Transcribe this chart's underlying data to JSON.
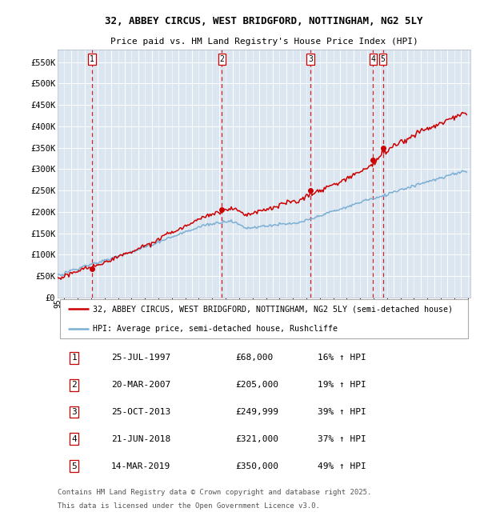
{
  "title1": "32, ABBEY CIRCUS, WEST BRIDGFORD, NOTTINGHAM, NG2 5LY",
  "title2": "Price paid vs. HM Land Registry's House Price Index (HPI)",
  "legend_line1": "32, ABBEY CIRCUS, WEST BRIDGFORD, NOTTINGHAM, NG2 5LY (semi-detached house)",
  "legend_line2": "HPI: Average price, semi-detached house, Rushcliffe",
  "footer1": "Contains HM Land Registry data © Crown copyright and database right 2025.",
  "footer2": "This data is licensed under the Open Government Licence v3.0.",
  "transactions": [
    {
      "num": 1,
      "date": "25-JUL-1997",
      "price": 68000,
      "hpi_pct": "16% ↑ HPI",
      "x_year": 1997.56
    },
    {
      "num": 2,
      "date": "20-MAR-2007",
      "price": 205000,
      "hpi_pct": "19% ↑ HPI",
      "x_year": 2007.22
    },
    {
      "num": 3,
      "date": "25-OCT-2013",
      "price": 249999,
      "hpi_pct": "39% ↑ HPI",
      "x_year": 2013.81
    },
    {
      "num": 4,
      "date": "21-JUN-2018",
      "price": 321000,
      "hpi_pct": "37% ↑ HPI",
      "x_year": 2018.47
    },
    {
      "num": 5,
      "date": "14-MAR-2019",
      "price": 350000,
      "hpi_pct": "49% ↑ HPI",
      "x_year": 2019.2
    }
  ],
  "hpi_color": "#7bafd4",
  "price_color": "#cc0000",
  "dot_color": "#cc0000",
  "bg_color": "#dce6f1",
  "grid_color": "#ffffff",
  "vline_color": "#cc0000",
  "ylim": [
    0,
    580000
  ],
  "xlim_start": 1995.0,
  "xlim_end": 2025.7,
  "yticks": [
    0,
    50000,
    100000,
    150000,
    200000,
    250000,
    300000,
    350000,
    400000,
    450000,
    500000,
    550000
  ],
  "ytick_labels": [
    "£0",
    "£50K",
    "£100K",
    "£150K",
    "£200K",
    "£250K",
    "£300K",
    "£350K",
    "£400K",
    "£450K",
    "£500K",
    "£550K"
  ]
}
